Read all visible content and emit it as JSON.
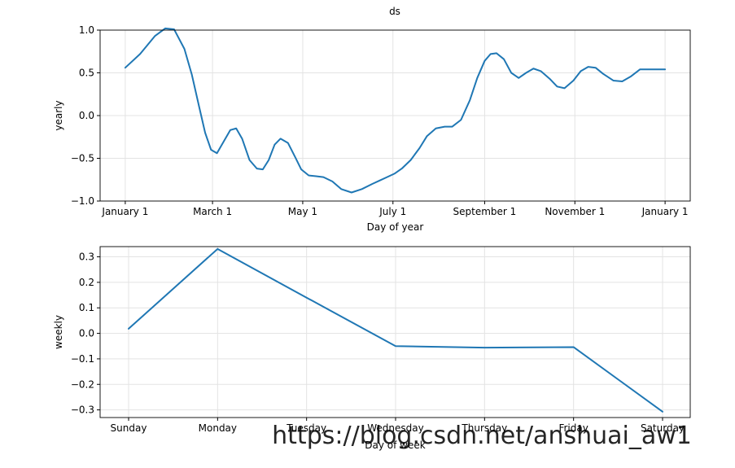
{
  "title": "ds",
  "watermark": "https://blog.csdn.net/anshuai_aw1",
  "chart_data": [
    {
      "type": "line",
      "xlabel": "Day of year",
      "ylabel": "yearly",
      "ylim": [
        -1.0,
        1.0
      ],
      "yticks": [
        -1.0,
        -0.5,
        0.0,
        0.5,
        1.0
      ],
      "ytick_labels": [
        "−1.0",
        "−0.5",
        "0.0",
        "0.5",
        "1.0"
      ],
      "xticks": [
        {
          "day": 0,
          "label": "January 1"
        },
        {
          "day": 59,
          "label": "March 1"
        },
        {
          "day": 120,
          "label": "May 1"
        },
        {
          "day": 181,
          "label": "July 1"
        },
        {
          "day": 243,
          "label": "September 1"
        },
        {
          "day": 304,
          "label": "November 1"
        },
        {
          "day": 365,
          "label": "January 1"
        }
      ],
      "xlim": [
        -17,
        382
      ],
      "grid": true,
      "color": "#1f77b4",
      "series": [
        {
          "x": [
            0,
            10,
            20,
            27,
            33,
            40,
            45,
            50,
            54,
            58,
            62,
            66,
            71,
            75,
            79,
            84,
            89,
            93,
            97,
            101,
            105,
            110,
            115,
            119,
            124,
            129,
            134,
            140,
            146,
            153,
            160,
            167,
            172,
            177,
            182,
            187,
            193,
            199,
            204,
            210,
            216,
            221,
            227,
            233,
            238,
            243,
            247,
            251,
            256,
            261,
            266,
            271,
            276,
            281,
            287,
            292,
            297,
            303,
            308,
            313,
            318,
            323,
            330,
            336,
            342,
            348,
            354,
            360,
            365
          ],
          "y": [
            0.56,
            0.72,
            0.93,
            1.02,
            1.01,
            0.78,
            0.48,
            0.1,
            -0.2,
            -0.4,
            -0.44,
            -0.32,
            -0.17,
            -0.15,
            -0.27,
            -0.52,
            -0.62,
            -0.63,
            -0.52,
            -0.34,
            -0.27,
            -0.32,
            -0.49,
            -0.63,
            -0.7,
            -0.71,
            -0.72,
            -0.77,
            -0.86,
            -0.9,
            -0.86,
            -0.8,
            -0.76,
            -0.72,
            -0.68,
            -0.62,
            -0.52,
            -0.38,
            -0.24,
            -0.15,
            -0.13,
            -0.13,
            -0.05,
            0.18,
            0.44,
            0.64,
            0.72,
            0.73,
            0.66,
            0.5,
            0.44,
            0.5,
            0.55,
            0.52,
            0.43,
            0.34,
            0.32,
            0.41,
            0.52,
            0.57,
            0.56,
            0.49,
            0.41,
            0.4,
            0.46,
            0.54,
            0.54,
            0.54,
            0.54
          ]
        }
      ]
    },
    {
      "type": "line",
      "xlabel": "Day of week",
      "ylabel": "weekly",
      "ylim": [
        -0.33,
        0.34
      ],
      "yticks": [
        -0.3,
        -0.2,
        -0.1,
        0.0,
        0.1,
        0.2,
        0.3
      ],
      "ytick_labels": [
        "−0.3",
        "−0.2",
        "−0.1",
        "0.0",
        "0.1",
        "0.2",
        "0.3"
      ],
      "categories": [
        "Sunday",
        "Monday",
        "Tuesday",
        "Wednesday",
        "Thursday",
        "Friday",
        "Saturday"
      ],
      "grid": true,
      "color": "#1f77b4",
      "series": [
        {
          "values": [
            0.018,
            0.331,
            0.14,
            -0.05,
            -0.056,
            -0.054,
            -0.307
          ]
        }
      ]
    }
  ]
}
